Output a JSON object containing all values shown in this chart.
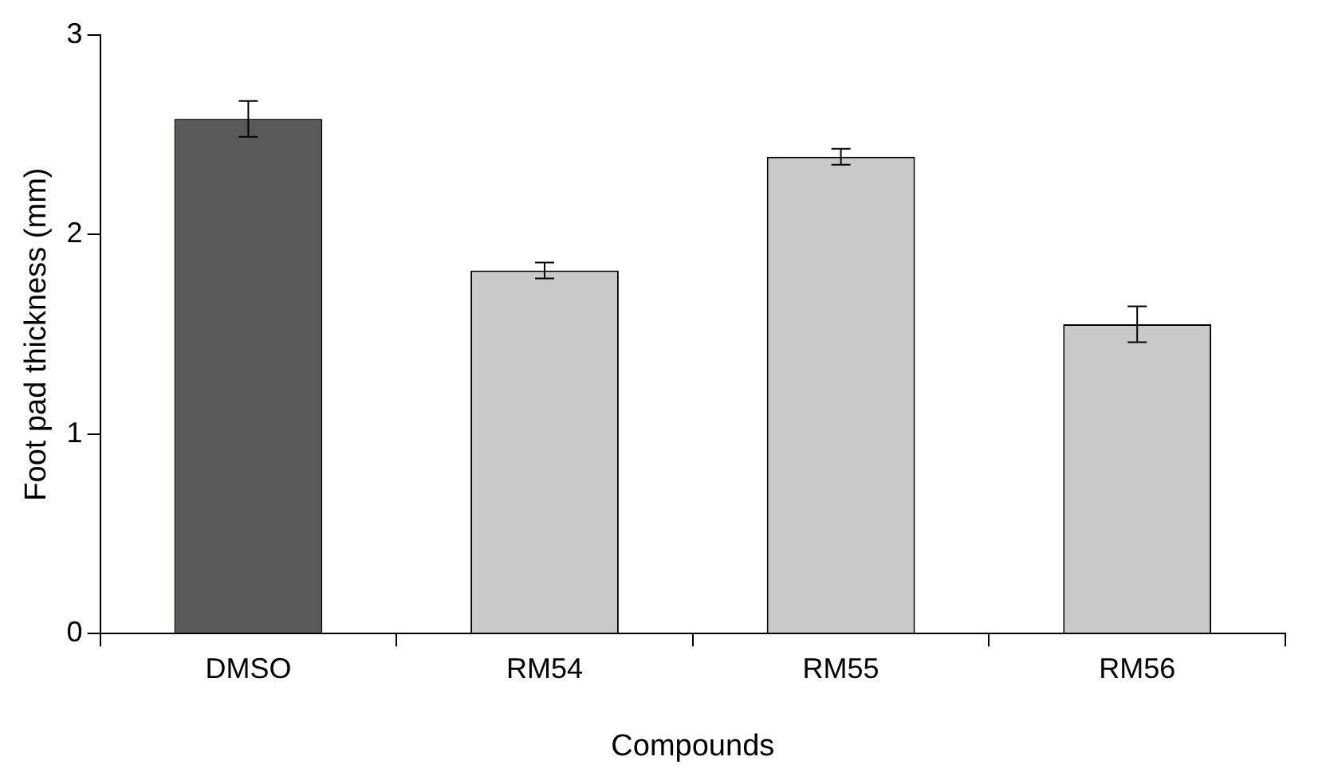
{
  "chart_data": {
    "type": "bar",
    "xlabel": "Compounds",
    "ylabel": "Foot pad thickness (mm)",
    "categories": [
      "DMSO",
      "RM54",
      "RM55",
      "RM56"
    ],
    "values": [
      2.58,
      1.82,
      2.39,
      1.55
    ],
    "errors": [
      0.09,
      0.04,
      0.04,
      0.09
    ],
    "colors": [
      "#58595b",
      "#c8c9cb",
      "#c8c9cb",
      "#c8c9cb"
    ],
    "ylim": [
      0,
      3
    ],
    "yticks": [
      0,
      1,
      2,
      3
    ],
    "grid": false,
    "legend": false
  }
}
